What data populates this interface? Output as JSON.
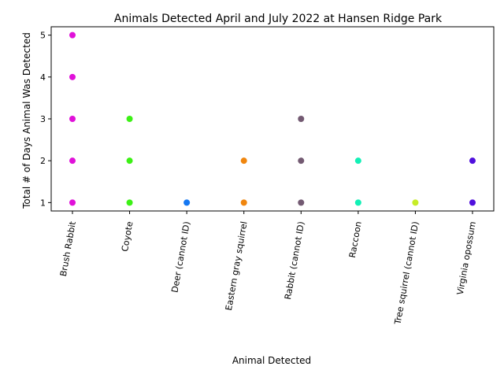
{
  "chart_data": {
    "type": "scatter",
    "title": "Animals Detected April and July 2022 at Hansen Ridge Park",
    "xlabel": "Animal Detected",
    "ylabel": "Total # of Days Animal Was Detected",
    "categories": [
      "Brush Rabbit",
      "Coyote",
      "Deer (cannot ID)",
      "Eastern gray squirrel",
      "Rabbit (cannot ID)",
      "Raccoon",
      "Tree squirrel (cannot ID)",
      "Virginia opossum"
    ],
    "y_ticks": [
      1,
      2,
      3,
      4,
      5
    ],
    "ylim": [
      0.8,
      5.2
    ],
    "grid": false,
    "legend": "none",
    "series": [
      {
        "color": "#e011d9",
        "points": [
          {
            "x": "Brush Rabbit",
            "y": 1
          },
          {
            "x": "Brush Rabbit",
            "y": 2
          },
          {
            "x": "Brush Rabbit",
            "y": 3
          },
          {
            "x": "Brush Rabbit",
            "y": 4
          },
          {
            "x": "Brush Rabbit",
            "y": 5
          }
        ]
      },
      {
        "color": "#3cf115",
        "points": [
          {
            "x": "Coyote",
            "y": 1
          },
          {
            "x": "Coyote",
            "y": 2
          },
          {
            "x": "Coyote",
            "y": 3
          }
        ]
      },
      {
        "color": "#1477f2",
        "points": [
          {
            "x": "Deer (cannot ID)",
            "y": 1
          }
        ]
      },
      {
        "color": "#f0860e",
        "points": [
          {
            "x": "Eastern gray squirrel",
            "y": 1
          },
          {
            "x": "Eastern gray squirrel",
            "y": 2
          }
        ]
      },
      {
        "color": "#735a72",
        "points": [
          {
            "x": "Rabbit (cannot ID)",
            "y": 1
          },
          {
            "x": "Rabbit (cannot ID)",
            "y": 2
          },
          {
            "x": "Rabbit (cannot ID)",
            "y": 3
          }
        ]
      },
      {
        "color": "#12f0b6",
        "points": [
          {
            "x": "Raccoon",
            "y": 1
          },
          {
            "x": "Raccoon",
            "y": 2
          }
        ]
      },
      {
        "color": "#c7ed27",
        "points": [
          {
            "x": "Tree squirrel (cannot ID)",
            "y": 1
          }
        ]
      },
      {
        "color": "#5010dd",
        "points": [
          {
            "x": "Virginia opossum",
            "y": 1
          },
          {
            "x": "Virginia opossum",
            "y": 2
          }
        ]
      }
    ]
  }
}
